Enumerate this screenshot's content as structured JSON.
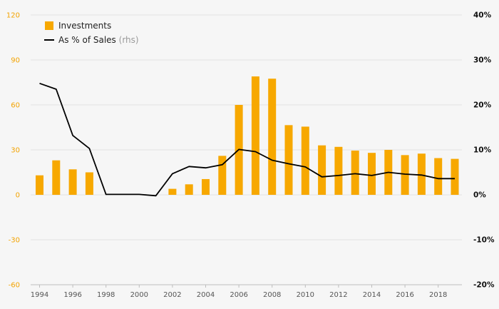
{
  "chart_data": {
    "type": "bar",
    "colors": {
      "bar": "#f7a800",
      "line": "#000000",
      "left_axis": "#f3a300",
      "right_axis": "#111111",
      "grid": "#e3e3e3"
    },
    "x": [
      1994,
      1995,
      1996,
      1997,
      1998,
      1999,
      2000,
      2001,
      2002,
      2003,
      2004,
      2005,
      2006,
      2007,
      2008,
      2009,
      2010,
      2011,
      2012,
      2013,
      2014,
      2015,
      2016,
      2017,
      2018,
      2019
    ],
    "x_tick_labels": [
      "1994",
      "1996",
      "1998",
      "2000",
      "2002",
      "2004",
      "2006",
      "2008",
      "2010",
      "2012",
      "2014",
      "2016",
      "2018"
    ],
    "series": [
      {
        "name": "Investments",
        "type": "bar",
        "axis": "left",
        "values": [
          13,
          23,
          17,
          15,
          0,
          0,
          0,
          0,
          4,
          7,
          10.5,
          26,
          60,
          79,
          77.5,
          46.5,
          45.5,
          33,
          32,
          29.5,
          28,
          30,
          26.5,
          27.5,
          24.5,
          24
        ]
      },
      {
        "name": "As % of Sales",
        "name_suffix": "(rhs)",
        "type": "line",
        "axis": "right",
        "values": [
          24.8,
          23.5,
          13.2,
          10.3,
          0.1,
          0.1,
          0.1,
          -0.2,
          4.7,
          6.3,
          6,
          6.7,
          10.1,
          9.6,
          7.7,
          6.9,
          6.2,
          4,
          4.3,
          4.7,
          4.3,
          5,
          4.6,
          4.4,
          3.6,
          3.6
        ]
      }
    ],
    "y_left": {
      "min": -60,
      "max": 120,
      "ticks": [
        "120",
        "90",
        "60",
        "30",
        "0",
        "-30",
        "-60"
      ]
    },
    "y_right": {
      "min": -20,
      "max": 40,
      "ticks": [
        "40%",
        "30%",
        "20%",
        "10%",
        "0%",
        "-10%",
        "-20%"
      ]
    },
    "grid": true,
    "legend_position": "top-left"
  }
}
